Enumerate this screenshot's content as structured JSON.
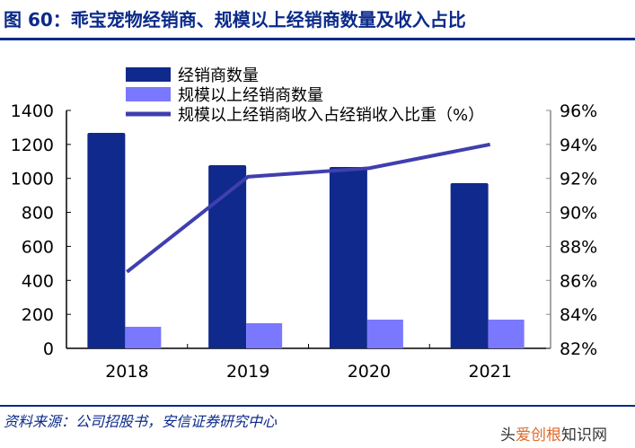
{
  "title": "图 60：乖宝宠物经销商、规模以上经销商数量及收入占比",
  "source": "资料来源：公司招股书，安信证券研究中心",
  "watermark": {
    "prefix": "头",
    "highlight": "爱创根",
    "suffix": "知识网"
  },
  "chart_data": {
    "type": "bar",
    "categories": [
      "2018",
      "2019",
      "2020",
      "2021"
    ],
    "series": [
      {
        "name": "经销商数量",
        "type": "bar",
        "axis": "left",
        "color": "#10298c",
        "values": [
          1268,
          1078,
          1067,
          972
        ]
      },
      {
        "name": "规模以上经销商数量",
        "type": "bar",
        "axis": "left",
        "color": "#7a78ff",
        "values": [
          127,
          148,
          169,
          169
        ]
      },
      {
        "name": "规模以上经销商收入占经销收入比重（%）",
        "type": "line",
        "axis": "right",
        "color": "#3f3fae",
        "values": [
          86.5,
          92.1,
          92.6,
          94.0
        ]
      }
    ],
    "yleft": {
      "lim": [
        0,
        1400
      ],
      "ticks": [
        "0",
        "200",
        "400",
        "600",
        "800",
        "1000",
        "1200",
        "1400"
      ]
    },
    "yright": {
      "lim": [
        82,
        96
      ],
      "ticks": [
        "82%",
        "84%",
        "86%",
        "88%",
        "90%",
        "92%",
        "94%",
        "96%"
      ]
    },
    "legend": "top",
    "grid": false
  }
}
